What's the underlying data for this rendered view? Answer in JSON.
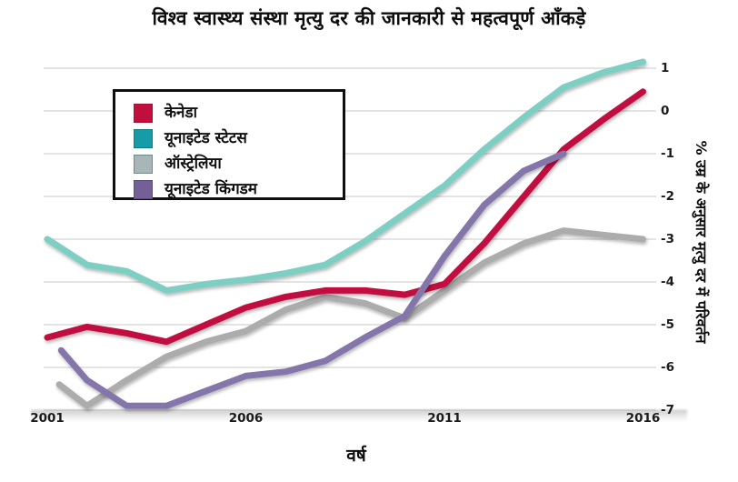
{
  "chart_data": {
    "type": "line",
    "title": "विश्व स्वास्थ्य संस्था मृत्यु दर की जानकारी से महत्वपूर्ण आँकड़े",
    "xlabel": "वर्ष",
    "ylabel": "% उम्र के अनुसार मृत्यु दर में परिवर्तन",
    "xticks": [
      2001,
      2006,
      2011,
      2016
    ],
    "yticks": [
      1,
      0,
      -1,
      -2,
      -3,
      -4,
      -5,
      -6,
      -7
    ],
    "xlim": [
      2001,
      2016
    ],
    "ylim": [
      -7,
      1
    ],
    "grid": "horizontal",
    "gridline_color": "#dcdcdc",
    "legend_position": "top-left",
    "series": [
      {
        "id": "canada",
        "name": "केनेडा",
        "color": "#c2103f",
        "legend_color": "#c00f3d",
        "legend_border": "#a50d34",
        "x": [
          2001,
          2002,
          2003,
          2004,
          2005,
          2006,
          2007,
          2008,
          2009,
          2010,
          2011,
          2012,
          2013,
          2014,
          2015,
          2016
        ],
        "y": [
          -5.3,
          -5.05,
          -5.2,
          -5.4,
          -5.0,
          -4.6,
          -4.35,
          -4.2,
          -4.2,
          -4.3,
          -4.05,
          -3.1,
          -2.0,
          -0.9,
          -0.2,
          0.45
        ]
      },
      {
        "id": "united-states",
        "name": "यूनाइटेड स्टेटस",
        "color": "#7bcfc2",
        "legend_color": "#169ca6",
        "legend_border": "#0f7d85",
        "x": [
          2001,
          2002,
          2003,
          2004,
          2005,
          2006,
          2007,
          2008,
          2009,
          2010,
          2011,
          2012,
          2013,
          2014,
          2015,
          2016
        ],
        "y": [
          -3.0,
          -3.6,
          -3.75,
          -4.2,
          -4.05,
          -3.95,
          -3.8,
          -3.6,
          -3.05,
          -2.4,
          -1.75,
          -0.9,
          -0.15,
          0.55,
          0.9,
          1.15
        ]
      },
      {
        "id": "australia",
        "name": "ऑस्ट्रेलिया",
        "color": "#acacac",
        "legend_color": "#a9b6b8",
        "legend_border": "#6f8a8d",
        "x": [
          2001.3,
          2002,
          2003,
          2004,
          2005,
          2006,
          2007,
          2008,
          2009,
          2010,
          2011,
          2012,
          2013,
          2014,
          2015,
          2016
        ],
        "y": [
          -6.4,
          -6.9,
          -6.3,
          -5.75,
          -5.4,
          -5.15,
          -4.65,
          -4.35,
          -4.5,
          -4.85,
          -4.2,
          -3.55,
          -3.1,
          -2.8,
          -2.9,
          -3.0
        ]
      },
      {
        "id": "united-kingdom",
        "name": "यूनाइटेड किंगडम",
        "color": "#8476ab",
        "legend_color": "#755f97",
        "legend_border": "#5c4b7e",
        "x": [
          2001.35,
          2002,
          2003,
          2004,
          2005,
          2006,
          2007,
          2008,
          2009,
          2010,
          2011,
          2012,
          2013,
          2014
        ],
        "y": [
          -5.6,
          -6.3,
          -6.9,
          -6.9,
          -6.55,
          -6.2,
          -6.1,
          -5.85,
          -5.3,
          -4.8,
          -3.4,
          -2.2,
          -1.4,
          -1.0
        ]
      }
    ],
    "draw_order": [
      1,
      2,
      0,
      3
    ],
    "line_width": 7
  }
}
